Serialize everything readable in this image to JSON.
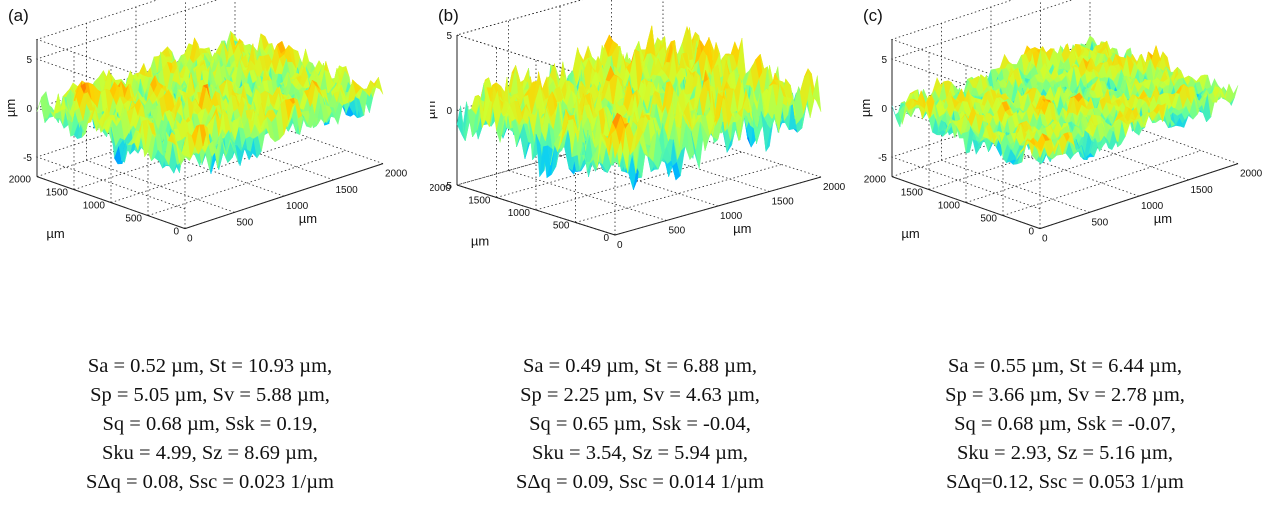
{
  "chart_data": [
    {
      "type": "surface3d",
      "panel_label": "(a)",
      "zlabel": "µm",
      "xlabel": "µm",
      "ylabel": "µm",
      "x_ticks": [
        "0",
        "500",
        "1000",
        "1500",
        "2000"
      ],
      "y_ticks": [
        "0",
        "500",
        "1000",
        "1500",
        "2000"
      ],
      "z_ticks": [
        "-5",
        "0",
        "5"
      ],
      "xlim": [
        0,
        2000
      ],
      "ylim": [
        0,
        2000
      ],
      "zlim": [
        -7,
        7
      ],
      "grid": true,
      "surface_amplitude_um": 5.05,
      "stats_lines": [
        "Sa = 0.52 µm, St = 10.93 µm,",
        "Sp = 5.05 µm, Sv = 5.88 µm,",
        "Sq = 0.68 µm, Ssk = 0.19,",
        "Sku = 4.99, Sz = 8.69 µm,",
        "SΔq = 0.08, Ssc = 0.023 1/µm"
      ]
    },
    {
      "type": "surface3d",
      "panel_label": "(b)",
      "zlabel": "µm",
      "xlabel": "µm",
      "ylabel": "µm",
      "x_ticks": [
        "0",
        "500",
        "1000",
        "1500",
        "2000"
      ],
      "y_ticks": [
        "0",
        "500",
        "1000",
        "1500",
        "2000"
      ],
      "z_ticks": [
        "-5",
        "0",
        "5"
      ],
      "xlim": [
        0,
        2000
      ],
      "ylim": [
        0,
        2000
      ],
      "zlim": [
        -5,
        5
      ],
      "grid": true,
      "surface_amplitude_um": 4.63,
      "stats_lines": [
        "Sa = 0.49 µm, St = 6.88 µm,",
        "Sp = 2.25 µm, Sv = 4.63 µm,",
        "Sq = 0.65 µm, Ssk = -0.04,",
        "Sku = 3.54, Sz = 5.94 µm,",
        "SΔq = 0.09, Ssc = 0.014 1/µm"
      ]
    },
    {
      "type": "surface3d",
      "panel_label": "(c)",
      "zlabel": "µm",
      "xlabel": "µm",
      "ylabel": "µm",
      "x_ticks": [
        "0",
        "500",
        "1000",
        "1500",
        "2000"
      ],
      "y_ticks": [
        "0",
        "500",
        "1000",
        "1500",
        "2000"
      ],
      "z_ticks": [
        "-5",
        "0",
        "5"
      ],
      "xlim": [
        0,
        2000
      ],
      "ylim": [
        0,
        2000
      ],
      "zlim": [
        -7,
        7
      ],
      "grid": true,
      "surface_amplitude_um": 3.66,
      "stats_lines": [
        "Sa = 0.55 µm, St = 6.44 µm,",
        "Sp = 3.66 µm, Sv = 2.78 µm,",
        "Sq = 0.68 µm, Ssk = -0.07,",
        "Sku = 2.93, Sz = 5.16 µm,",
        "SΔq=0.12, Ssc = 0.053 1/µm"
      ]
    }
  ],
  "colormap": [
    "#00008f",
    "#0050ff",
    "#00c8ff",
    "#60ff9f",
    "#cfff30",
    "#ffd000",
    "#ff6000",
    "#c00000"
  ]
}
